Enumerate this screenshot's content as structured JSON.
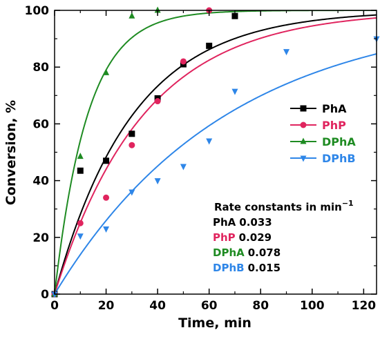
{
  "chart_data": {
    "type": "scatter",
    "xlabel": "Time, min",
    "ylabel": "Conversion, %",
    "xlim": [
      0,
      125
    ],
    "ylim": [
      0,
      100
    ],
    "x_ticks": [
      0,
      20,
      40,
      60,
      80,
      100,
      120
    ],
    "y_ticks": [
      0,
      20,
      40,
      60,
      80,
      100
    ],
    "grid": false,
    "legend_position": "right",
    "series": [
      {
        "name": "PhA",
        "color": "#000000",
        "marker": "square",
        "rate": 0.033,
        "rate_label": "0.033",
        "x": [
          0,
          10,
          20,
          30,
          40,
          50,
          60,
          70
        ],
        "y": [
          0,
          43.5,
          47,
          56.5,
          69,
          81,
          87.5,
          98
        ]
      },
      {
        "name": "PhP",
        "color": "#e0245e",
        "marker": "circle",
        "rate": 0.029,
        "rate_label": "0.029",
        "x": [
          0,
          10,
          20,
          30,
          40,
          50,
          60
        ],
        "y": [
          0,
          25,
          34,
          52.5,
          68,
          82,
          100
        ]
      },
      {
        "name": "DPhA",
        "color": "#1e8b22",
        "marker": "triangle-up",
        "rate": 0.078,
        "rate_label": "0.078",
        "x": [
          0,
          10,
          20,
          30,
          40
        ],
        "y": [
          0,
          48.5,
          78,
          98,
          100
        ]
      },
      {
        "name": "DPhB",
        "color": "#2e86e8",
        "marker": "triangle-down",
        "rate": 0.015,
        "rate_label": "0.015",
        "x": [
          0,
          10,
          20,
          30,
          40,
          50,
          60,
          70,
          90,
          125
        ],
        "y": [
          0,
          20.5,
          23,
          36,
          40,
          45,
          54,
          71.5,
          85.5,
          90
        ]
      }
    ],
    "rate_box_title": "Rate constants in min",
    "rate_box_exponent": "−1"
  }
}
